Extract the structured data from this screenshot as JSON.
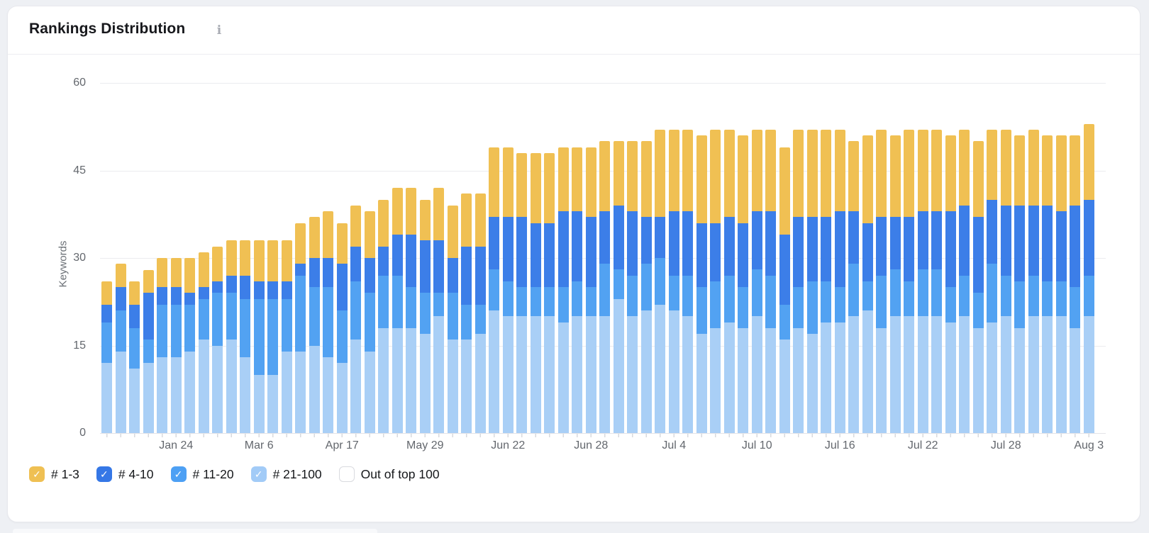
{
  "card": {
    "title": "Rankings Distribution",
    "info_icon_glyph": "i"
  },
  "chart_data": {
    "type": "bar",
    "stacked": true,
    "title": "Rankings Distribution",
    "ylabel": "Keywords",
    "xlabel": "",
    "ylim": [
      0,
      60
    ],
    "yticks": [
      0,
      15,
      30,
      45,
      60
    ],
    "grid": true,
    "legend_position": "bottom",
    "num_bars": 72,
    "x_tick_labels": [
      {
        "text": "Jan 24",
        "bar_index": 5
      },
      {
        "text": "Mar 6",
        "bar_index": 11
      },
      {
        "text": "Apr 17",
        "bar_index": 17
      },
      {
        "text": "May 29",
        "bar_index": 23
      },
      {
        "text": "Jun 22",
        "bar_index": 29
      },
      {
        "text": "Jun 28",
        "bar_index": 35
      },
      {
        "text": "Jul 4",
        "bar_index": 41
      },
      {
        "text": "Jul 10",
        "bar_index": 47
      },
      {
        "text": "Jul 16",
        "bar_index": 53
      },
      {
        "text": "Jul 22",
        "bar_index": 59
      },
      {
        "text": "Jul 28",
        "bar_index": 65
      },
      {
        "text": "Aug 3",
        "bar_index": 71
      }
    ],
    "series": [
      {
        "name": "# 21-100",
        "color": "#a9cff6",
        "values": [
          12,
          14,
          11,
          12,
          13,
          13,
          14,
          16,
          15,
          16,
          13,
          10,
          10,
          14,
          14,
          15,
          13,
          12,
          16,
          14,
          18,
          18,
          18,
          17,
          20,
          16,
          16,
          17,
          21,
          20,
          20,
          20,
          20,
          19,
          20,
          20,
          20,
          23,
          20,
          21,
          22,
          21,
          20,
          17,
          18,
          19,
          18,
          20,
          18,
          16,
          18,
          17,
          19,
          19,
          20,
          21,
          18,
          20,
          20,
          20,
          20,
          19,
          20,
          18,
          19,
          20,
          18,
          20,
          20,
          20,
          18,
          20
        ]
      },
      {
        "name": "# 11-20",
        "color": "#52a2f2",
        "values": [
          7,
          7,
          7,
          4,
          9,
          9,
          8,
          7,
          9,
          8,
          10,
          13,
          13,
          9,
          13,
          10,
          12,
          9,
          10,
          10,
          9,
          9,
          7,
          7,
          4,
          8,
          6,
          5,
          7,
          6,
          5,
          5,
          5,
          6,
          6,
          5,
          9,
          5,
          7,
          8,
          8,
          6,
          7,
          8,
          8,
          8,
          7,
          8,
          9,
          6,
          7,
          9,
          7,
          6,
          9,
          5,
          9,
          8,
          6,
          8,
          8,
          6,
          7,
          6,
          10,
          7,
          8,
          7,
          6,
          6,
          7,
          7
        ]
      },
      {
        "name": "# 4-10",
        "color": "#3c7ee8",
        "values": [
          3,
          4,
          4,
          8,
          3,
          3,
          2,
          2,
          2,
          3,
          4,
          3,
          3,
          3,
          2,
          5,
          5,
          8,
          6,
          6,
          5,
          7,
          9,
          9,
          9,
          6,
          10,
          10,
          9,
          11,
          12,
          11,
          11,
          13,
          12,
          12,
          9,
          11,
          11,
          8,
          7,
          11,
          11,
          11,
          10,
          10,
          11,
          10,
          11,
          12,
          12,
          11,
          11,
          13,
          9,
          10,
          10,
          9,
          11,
          10,
          10,
          13,
          12,
          13,
          11,
          12,
          13,
          12,
          13,
          12,
          14,
          13
        ]
      },
      {
        "name": "# 1-3",
        "color": "#f0c053",
        "values": [
          4,
          4,
          4,
          4,
          5,
          5,
          6,
          6,
          6,
          6,
          6,
          7,
          7,
          7,
          7,
          7,
          8,
          7,
          7,
          8,
          8,
          8,
          8,
          7,
          9,
          9,
          9,
          9,
          12,
          12,
          11,
          12,
          12,
          11,
          11,
          12,
          12,
          11,
          12,
          13,
          15,
          14,
          14,
          15,
          16,
          15,
          15,
          14,
          14,
          15,
          15,
          15,
          15,
          14,
          12,
          15,
          15,
          14,
          15,
          14,
          14,
          13,
          13,
          13,
          12,
          13,
          12,
          13,
          12,
          13,
          12,
          13
        ]
      }
    ]
  },
  "legend": {
    "items": [
      {
        "label": "# 1-3",
        "checked": true,
        "color": "#efc053"
      },
      {
        "label": "# 4-10",
        "checked": true,
        "color": "#3577e6"
      },
      {
        "label": "# 11-20",
        "checked": true,
        "color": "#4da0f4"
      },
      {
        "label": "# 21-100",
        "checked": true,
        "color": "#a2cbf7"
      },
      {
        "label": "Out of top 100",
        "checked": false,
        "color": "#ffffff"
      }
    ],
    "check_glyph": "✓"
  }
}
